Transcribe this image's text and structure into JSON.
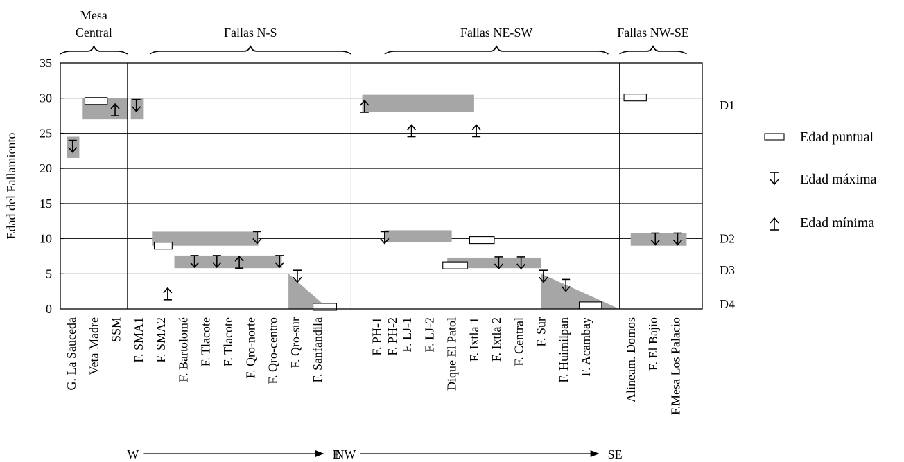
{
  "chart_data": {
    "type": "range",
    "ylabel": "Edad del Fallamiento",
    "ylim": [
      0,
      35
    ],
    "yticks": [
      0,
      5,
      10,
      15,
      20,
      25,
      30,
      35
    ],
    "grid": true,
    "groups": [
      {
        "label": "Mesa Central",
        "x_from": 0.5,
        "x_to": 3.5
      },
      {
        "label": "Fallas N-S",
        "x_from": 4.5,
        "x_to": 13.5
      },
      {
        "label": "Fallas NE-SW",
        "x_from": 15,
        "x_to": 25
      },
      {
        "label": "Fallas NW-SE",
        "x_from": 25.5,
        "x_to": 28.5
      }
    ],
    "categories": [
      "G. La Sauceda",
      "Veta Madre",
      "SSM",
      "F. SMA1",
      "F. SMA2",
      "F. Bartolomé",
      "F. Tlacote",
      "F. Tlacote",
      "F. Qro-norte",
      "F. Qro-centro",
      "F. Qro-sur",
      "F. Sanfandila",
      "F. PH-1",
      "F. PH-2",
      "F. LJ-1",
      "F. LJ-2",
      "Dique El Patol",
      "F. Ixtla 1",
      "F. Ixtla 2",
      "F. Central",
      "F. Sur",
      "F. Huimilpan",
      "F. Acambay",
      "Alineam. Domos",
      "F. El Bajio",
      "F.Mesa  Los Palacio"
    ],
    "category_x": [
      1,
      2,
      3,
      4,
      5,
      6,
      7,
      8,
      9,
      10,
      11,
      12,
      14.65,
      15.35,
      16,
      17,
      18,
      19,
      20,
      21,
      22,
      23,
      24,
      26,
      27,
      28
    ],
    "dividers_x": [
      3.5,
      13.5,
      25.5
    ],
    "domain_ranges": [
      {
        "label": "D1",
        "age": 29
      },
      {
        "label": "D2",
        "age": 10
      },
      {
        "label": "D3",
        "age": 5.5
      },
      {
        "label": "D4",
        "age": 0.7
      }
    ],
    "ranges": [
      {
        "x_from": 0.8,
        "x_to": 1.35,
        "y_from": 21.5,
        "y_to": 24.5
      },
      {
        "x_from": 1.5,
        "x_to": 3.5,
        "y_from": 27,
        "y_to": 30
      },
      {
        "x_from": 3.65,
        "x_to": 4.2,
        "y_from": 27,
        "y_to": 30
      },
      {
        "x_from": 4.6,
        "x_to": 9.35,
        "y_from": 9,
        "y_to": 11
      },
      {
        "x_from": 5.6,
        "x_to": 10.4,
        "y_from": 5.8,
        "y_to": 7.6
      },
      {
        "x_from": 14,
        "x_to": 19,
        "y_from": 28,
        "y_to": 30.5
      },
      {
        "x_from": 15,
        "x_to": 18,
        "y_from": 9.5,
        "y_to": 11.2
      },
      {
        "x_from": 17.8,
        "x_to": 22,
        "y_from": 5.8,
        "y_to": 7.3
      },
      {
        "x_from": 26,
        "x_to": 28.5,
        "y_from": 9,
        "y_to": 10.8
      }
    ],
    "ramps": [
      {
        "x_from": 10.7,
        "x_to": 12.5,
        "y_top": 5
      },
      {
        "x_from": 22,
        "x_to": 25.5,
        "y_top": 5
      }
    ],
    "point_ages": [
      {
        "x_from": 1.6,
        "x_to": 2.6,
        "y": 29.6
      },
      {
        "x_from": 4.7,
        "x_to": 5.5,
        "y": 9
      },
      {
        "x_from": 17.6,
        "x_to": 18.7,
        "y": 6.2
      },
      {
        "x_from": 18.8,
        "x_to": 19.9,
        "y": 9.8
      },
      {
        "x_from": 11.8,
        "x_to": 12.85,
        "y": 0.3
      },
      {
        "x_from": 23.7,
        "x_to": 24.7,
        "y": 0.5
      },
      {
        "x_from": 25.7,
        "x_to": 26.7,
        "y": 30.1
      }
    ],
    "max_ages": [
      {
        "x": 1.05,
        "y": 24
      },
      {
        "x": 3.9,
        "y": 29.8
      },
      {
        "x": 6.5,
        "y": 7.6
      },
      {
        "x": 7.5,
        "y": 7.6
      },
      {
        "x": 9.3,
        "y": 11
      },
      {
        "x": 10.3,
        "y": 7.6
      },
      {
        "x": 11.1,
        "y": 5.5
      },
      {
        "x": 15,
        "y": 11
      },
      {
        "x": 20.1,
        "y": 7.4
      },
      {
        "x": 21.1,
        "y": 7.4
      },
      {
        "x": 22.1,
        "y": 5.5
      },
      {
        "x": 23.1,
        "y": 4.2
      },
      {
        "x": 27.1,
        "y": 10.8
      },
      {
        "x": 28.1,
        "y": 10.8
      }
    ],
    "min_ages": [
      {
        "x": 2.95,
        "y": 27.5
      },
      {
        "x": 5.3,
        "y": 1.3
      },
      {
        "x": 8.5,
        "y": 5.8
      },
      {
        "x": 14.1,
        "y": 28
      },
      {
        "x": 16.2,
        "y": 24.5
      },
      {
        "x": 19.1,
        "y": 24.5
      }
    ],
    "legend": {
      "placement": "right",
      "items": [
        {
          "symbol": "box",
          "label": "Edad puntual"
        },
        {
          "symbol": "arrow-down",
          "label": "Edad máxima"
        },
        {
          "symbol": "arrow-up",
          "label": "Edad mínima"
        }
      ]
    },
    "direction_arrows": [
      {
        "from": "W",
        "to": "E",
        "x_from": 4.2,
        "x_to": 12.3
      },
      {
        "from": "NW",
        "to": "SE",
        "x_from": 13.9,
        "x_to": 24.6
      }
    ],
    "colors": {
      "fill": "#a6a6a6",
      "line": "#000000",
      "box_fill": "#ffffff"
    }
  }
}
